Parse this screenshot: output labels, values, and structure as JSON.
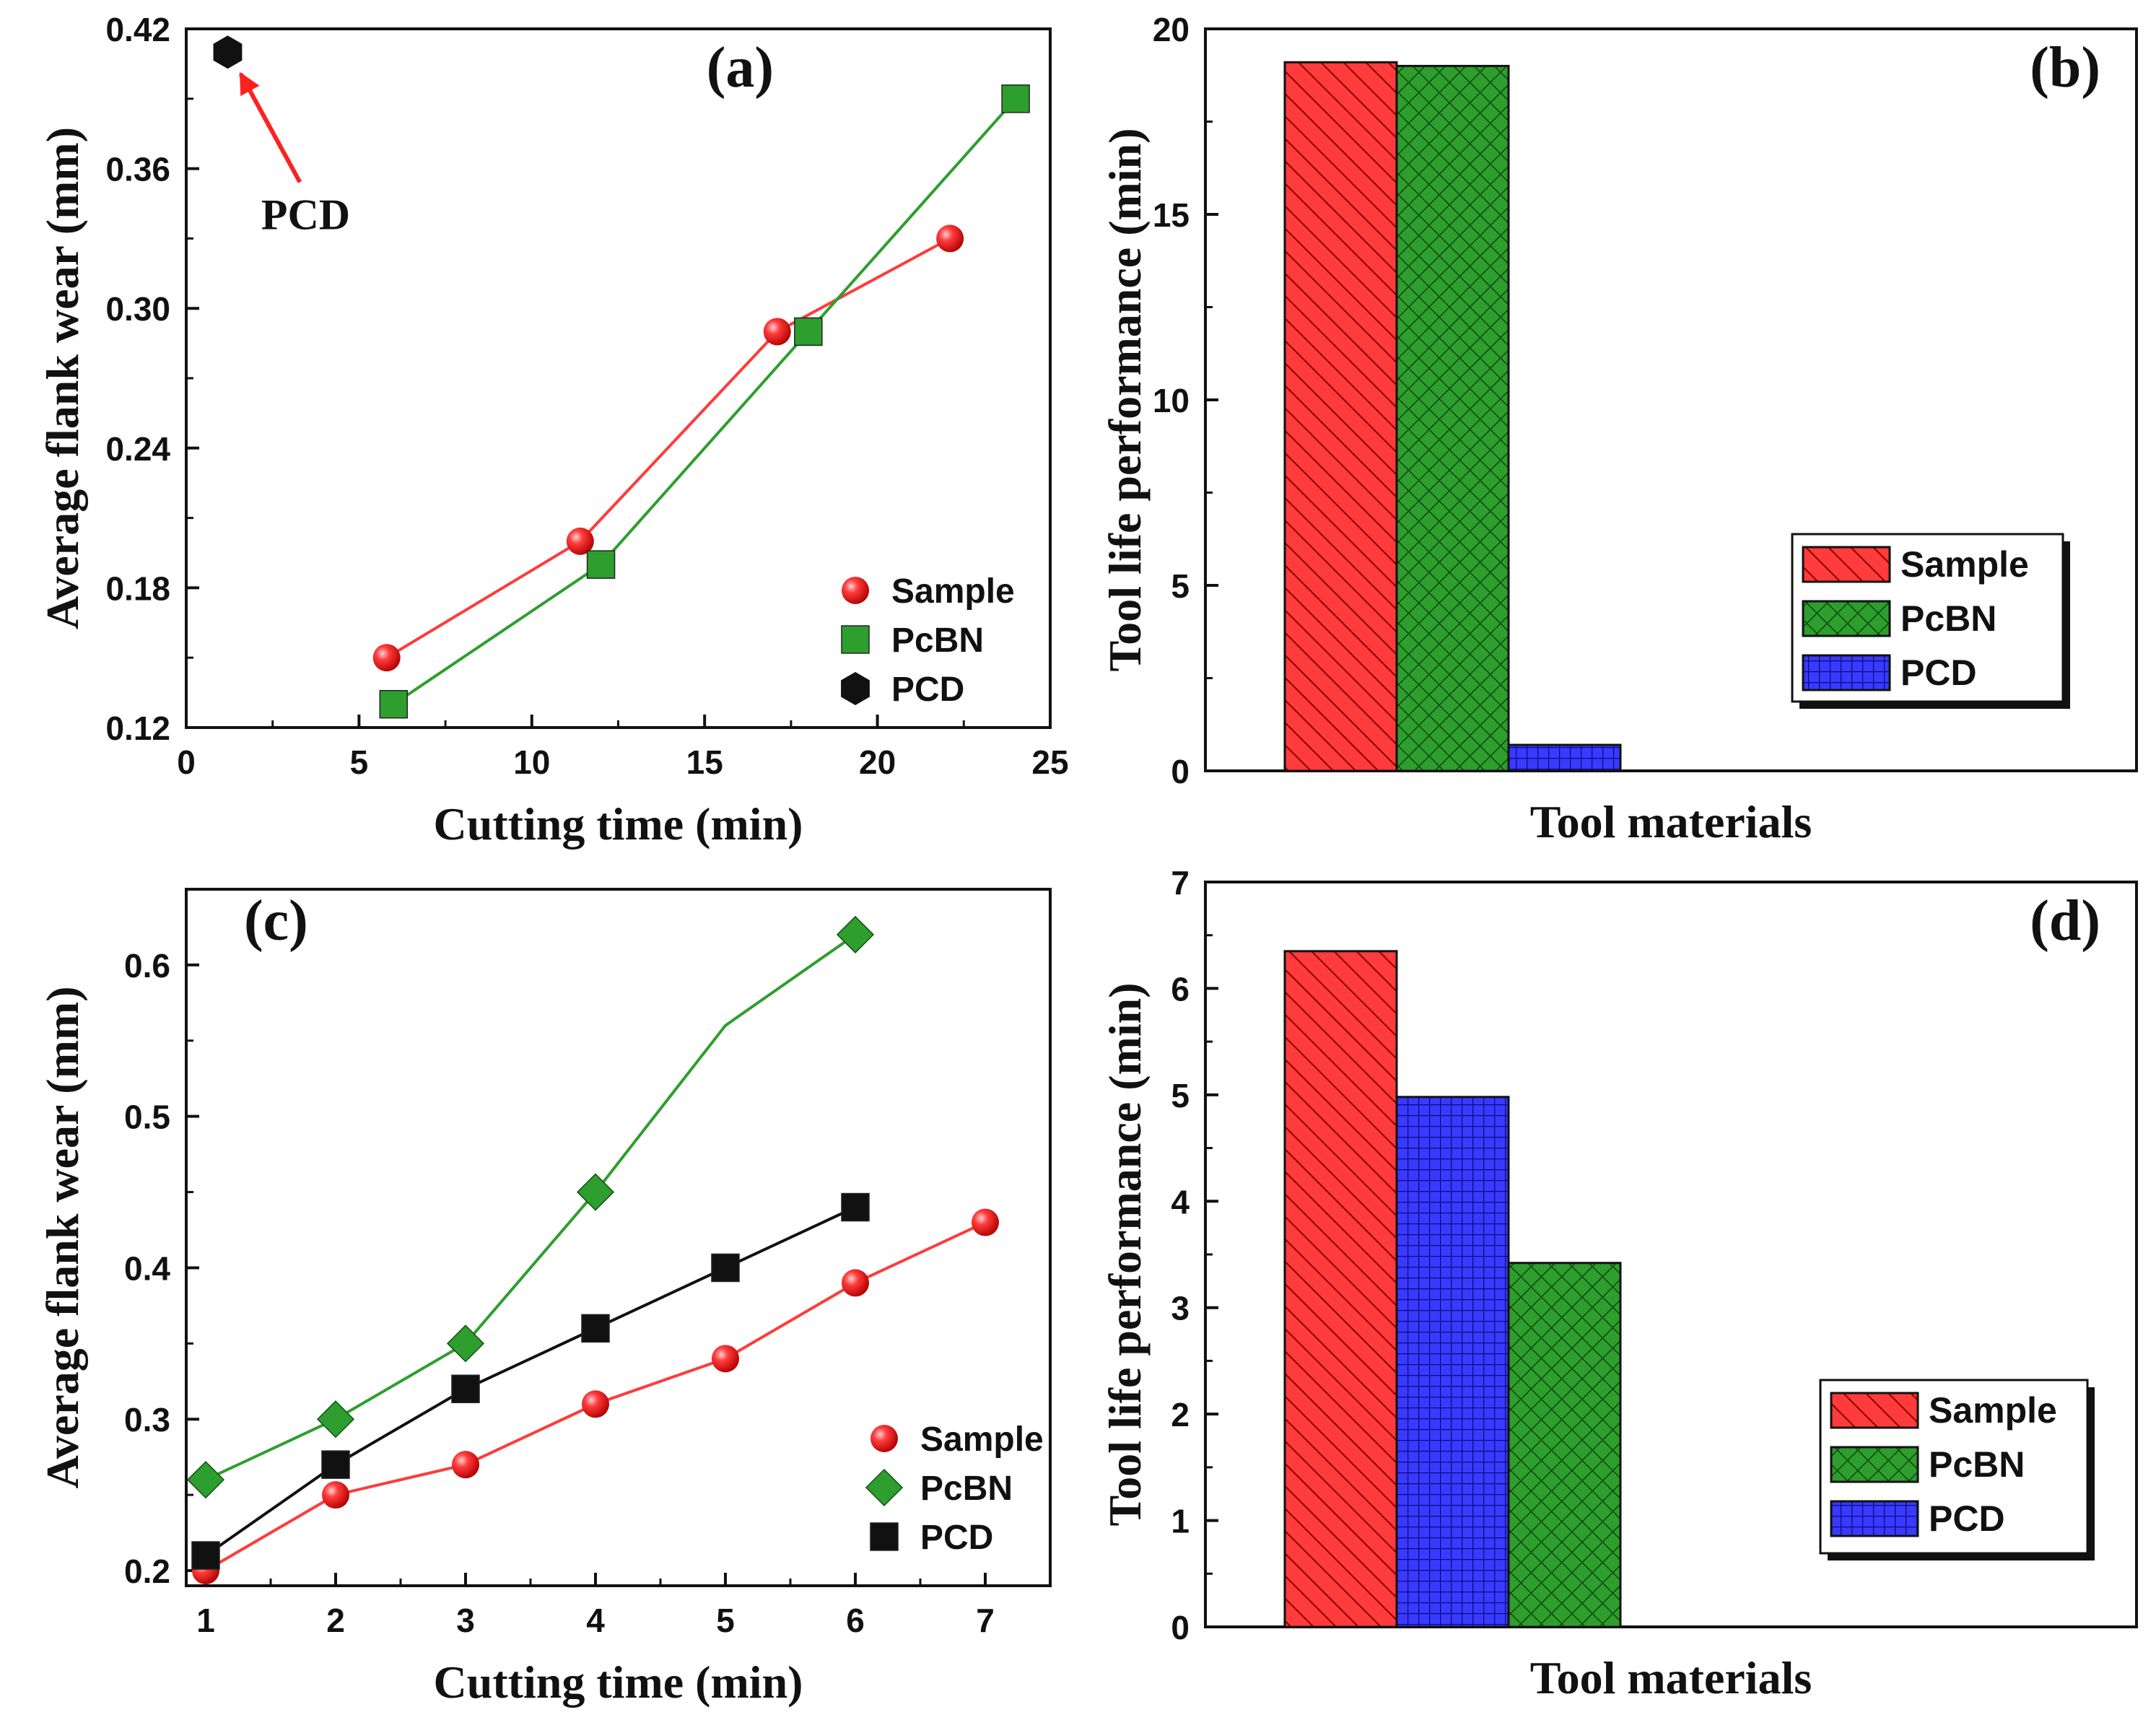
{
  "colors": {
    "red": "#ff3b3b",
    "red_dark": "#c40000",
    "green": "#2e9e2e",
    "green_dark": "#0f5f0f",
    "blue": "#3a3aff",
    "black": "#111111"
  },
  "chart_data": [
    {
      "id": "a",
      "type": "line",
      "panel_label": "(a)",
      "xlabel": "Cutting time (min)",
      "ylabel": "Average flank wear (mm)",
      "xlim": [
        0,
        25
      ],
      "ylim": [
        0.12,
        0.42
      ],
      "xticks": [
        0,
        5,
        10,
        15,
        20,
        25
      ],
      "yticks": [
        0.12,
        0.18,
        0.24,
        0.3,
        0.36,
        0.42
      ],
      "xtick_labels": [
        "0",
        "5",
        "10",
        "15",
        "20",
        "25"
      ],
      "ytick_labels": [
        "0.12",
        "0.18",
        "0.24",
        "0.30",
        "0.36",
        "0.42"
      ],
      "annotation": {
        "text": "PCD",
        "points_to": [
          1.2,
          0.41
        ]
      },
      "legend_position": "bottom-right",
      "series": [
        {
          "name": "Sample",
          "marker": "circle",
          "color": "#ff3b3b",
          "x": [
            5.8,
            11.4,
            17.1,
            22.1
          ],
          "y": [
            0.15,
            0.2,
            0.29,
            0.33
          ]
        },
        {
          "name": "PcBN",
          "marker": "square",
          "color": "#2e9e2e",
          "x": [
            6.0,
            12.0,
            18.0,
            24.0
          ],
          "y": [
            0.13,
            0.19,
            0.29,
            0.39
          ]
        },
        {
          "name": "PCD",
          "marker": "hexagon",
          "color": "#111111",
          "x": [
            1.2
          ],
          "y": [
            0.41
          ]
        }
      ]
    },
    {
      "id": "b",
      "type": "bar",
      "panel_label": "(b)",
      "xlabel": "Tool materials",
      "ylabel": "Tool life performance (min)",
      "ylim": [
        0,
        20
      ],
      "yticks": [
        0,
        5,
        10,
        15,
        20
      ],
      "ytick_labels": [
        "0",
        "5",
        "10",
        "15",
        "20"
      ],
      "legend_position": "center-right",
      "bars": [
        {
          "name": "Sample",
          "value": 19.1,
          "color": "#ff3b3b",
          "pattern": "diagonal"
        },
        {
          "name": "PcBN",
          "value": 19.0,
          "color": "#2e9e2e",
          "pattern": "crosshatch"
        },
        {
          "name": "PCD",
          "value": 0.7,
          "color": "#3a3aff",
          "pattern": "grid"
        }
      ]
    },
    {
      "id": "c",
      "type": "line",
      "panel_label": "(c)",
      "xlabel": "Cutting time (min)",
      "ylabel": "Average flank wear (mm)",
      "xlim": [
        0.85,
        7.5
      ],
      "ylim": [
        0.19,
        0.65
      ],
      "xticks": [
        1,
        2,
        3,
        4,
        5,
        6,
        7
      ],
      "yticks": [
        0.2,
        0.3,
        0.4,
        0.5,
        0.6
      ],
      "xtick_labels": [
        "1",
        "2",
        "3",
        "4",
        "5",
        "6",
        "7"
      ],
      "ytick_labels": [
        "0.2",
        "0.3",
        "0.4",
        "0.5",
        "0.6"
      ],
      "legend_position": "bottom-right",
      "series": [
        {
          "name": "Sample",
          "marker": "circle",
          "color": "#ff3b3b",
          "x": [
            1,
            2,
            3,
            4,
            5,
            6,
            7
          ],
          "y": [
            0.2,
            0.25,
            0.27,
            0.31,
            0.34,
            0.39,
            0.43
          ]
        },
        {
          "name": "PcBN",
          "marker": "diamond",
          "color": "#2e9e2e",
          "x": [
            1,
            2,
            3,
            4,
            5,
            6
          ],
          "y": [
            0.26,
            0.3,
            0.35,
            0.45,
            0.56,
            0.62
          ],
          "marker_indices": [
            0,
            1,
            2,
            3,
            5
          ]
        },
        {
          "name": "PCD",
          "marker": "square",
          "color": "#111111",
          "x": [
            1,
            2,
            3,
            4,
            5,
            6
          ],
          "y": [
            0.21,
            0.27,
            0.32,
            0.36,
            0.4,
            0.44
          ]
        }
      ]
    },
    {
      "id": "d",
      "type": "bar",
      "panel_label": "(d)",
      "xlabel": "Tool materials",
      "ylabel": "Tool life performance (min)",
      "ylim": [
        0,
        7
      ],
      "yticks": [
        0,
        1,
        2,
        3,
        4,
        5,
        6,
        7
      ],
      "ytick_labels": [
        "0",
        "1",
        "2",
        "3",
        "4",
        "5",
        "6",
        "7"
      ],
      "legend_position": "bottom-right",
      "bars": [
        {
          "name": "Sample",
          "value": 6.35,
          "color": "#ff3b3b",
          "pattern": "diagonal"
        },
        {
          "name": "PCD",
          "value": 4.98,
          "color": "#3a3aff",
          "pattern": "grid"
        },
        {
          "name": "PcBN",
          "value": 3.42,
          "color": "#2e9e2e",
          "pattern": "crosshatch"
        }
      ],
      "legend": [
        {
          "name": "Sample",
          "color": "#ff3b3b",
          "pattern": "diagonal"
        },
        {
          "name": "PcBN",
          "color": "#2e9e2e",
          "pattern": "crosshatch"
        },
        {
          "name": "PCD",
          "color": "#3a3aff",
          "pattern": "grid"
        }
      ]
    }
  ]
}
